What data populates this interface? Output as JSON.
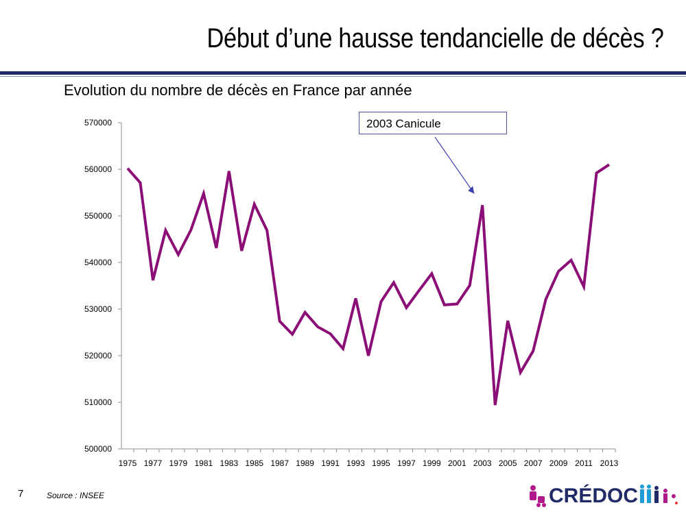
{
  "slide": {
    "title": "Début d’une hausse tendancielle de décès ?",
    "subtitle": "Evolution du nombre de décès en France par année",
    "callout": "2003 Canicule",
    "slide_number": "7",
    "source": "Source : INSEE",
    "logo_text": "CRÉDOC",
    "colors": {
      "rule": "#1f2a66",
      "line": "#8b0e76",
      "callout_border": "#4a52a0",
      "arrow": "#3b3fb0"
    }
  },
  "chart_data": {
    "type": "line",
    "title": "Evolution du nombre de décès en France par année",
    "x": [
      1975,
      1976,
      1977,
      1978,
      1979,
      1980,
      1981,
      1982,
      1983,
      1984,
      1985,
      1986,
      1987,
      1988,
      1989,
      1990,
      1991,
      1992,
      1993,
      1994,
      1995,
      1996,
      1997,
      1998,
      1999,
      2000,
      2001,
      2002,
      2003,
      2004,
      2005,
      2006,
      2007,
      2008,
      2009,
      2010,
      2011,
      2012,
      2013
    ],
    "series": [
      {
        "values": [
          560200,
          557100,
          536200,
          546900,
          541700,
          547000,
          554800,
          543100,
          559600,
          542500,
          552500,
          546900,
          527400,
          524600,
          529300,
          526200,
          524700,
          521500,
          532300,
          520000,
          531600,
          535700,
          530300,
          534000,
          537600,
          530900,
          531100,
          535100,
          552300,
          509400,
          527500,
          516400,
          521000,
          532100,
          538100,
          540500,
          534800,
          559200,
          561000
        ]
      }
    ],
    "xticks": [
      "1975",
      "1977",
      "1979",
      "1981",
      "1983",
      "1985",
      "1987",
      "1989",
      "1991",
      "1993",
      "1995",
      "1997",
      "1999",
      "2001",
      "2003",
      "2005",
      "2007",
      "2009",
      "2011",
      "2013"
    ],
    "yticks": [
      "500000",
      "510000",
      "520000",
      "530000",
      "540000",
      "550000",
      "560000",
      "570000"
    ],
    "ylim": [
      500000,
      570000
    ],
    "xlim": [
      1975,
      2013
    ],
    "grid": false,
    "annotations": [
      {
        "text": "2003 Canicule",
        "x": 2003,
        "y": 552300
      }
    ]
  }
}
